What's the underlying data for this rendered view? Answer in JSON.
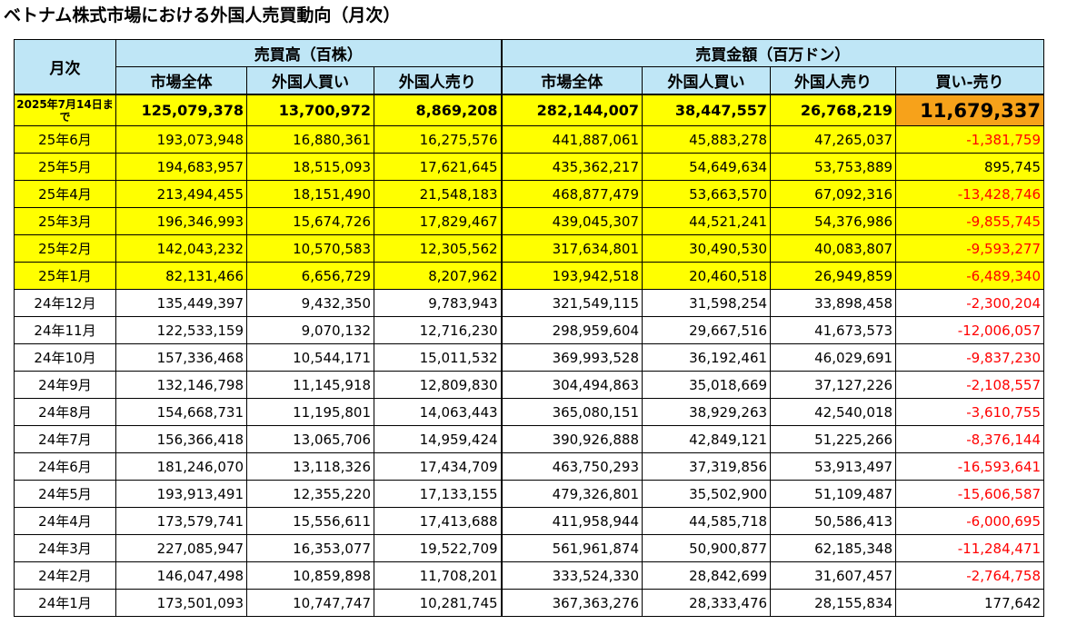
{
  "title": "ベトナム株式市場における外国人売買動向（月次）",
  "header": {
    "month_col": "月次",
    "group_volume": "売買高（百株）",
    "group_value": "売買金額（百万ドン）",
    "cols": [
      "市場全体",
      "外国人買い",
      "外国人売り",
      "市場全体",
      "外国人買い",
      "外国人売り",
      "買い-売り"
    ]
  },
  "latest": {
    "label": "2025年7月14日まで",
    "values": [
      "125,079,378",
      "13,700,972",
      "8,869,208",
      "282,144,007",
      "38,447,557",
      "26,768,219",
      "11,679,337"
    ]
  },
  "rows": [
    {
      "label": "25年6月",
      "values": [
        "193,073,948",
        "16,880,361",
        "16,275,576",
        "441,887,061",
        "45,883,278",
        "47,265,037",
        "-1,381,759"
      ]
    },
    {
      "label": "25年5月",
      "values": [
        "194,683,957",
        "18,515,093",
        "17,621,645",
        "435,362,217",
        "54,649,634",
        "53,753,889",
        "895,745"
      ]
    },
    {
      "label": "25年4月",
      "values": [
        "213,494,455",
        "18,151,490",
        "21,548,183",
        "468,877,479",
        "53,663,570",
        "67,092,316",
        "-13,428,746"
      ]
    },
    {
      "label": "25年3月",
      "values": [
        "196,346,993",
        "15,674,726",
        "17,829,467",
        "439,045,307",
        "44,521,241",
        "54,376,986",
        "-9,855,745"
      ]
    },
    {
      "label": "25年2月",
      "values": [
        "142,043,232",
        "10,570,583",
        "12,305,562",
        "317,634,801",
        "30,490,530",
        "40,083,807",
        "-9,593,277"
      ]
    },
    {
      "label": "25年1月",
      "values": [
        "82,131,466",
        "6,656,729",
        "8,207,962",
        "193,942,518",
        "20,460,518",
        "26,949,859",
        "-6,489,340"
      ]
    },
    {
      "label": "24年12月",
      "values": [
        "135,449,397",
        "9,432,350",
        "9,783,943",
        "321,549,115",
        "31,598,254",
        "33,898,458",
        "-2,300,204"
      ]
    },
    {
      "label": "24年11月",
      "values": [
        "122,533,159",
        "9,070,132",
        "12,716,230",
        "298,959,604",
        "29,667,516",
        "41,673,573",
        "-12,006,057"
      ]
    },
    {
      "label": "24年10月",
      "values": [
        "157,336,468",
        "10,544,171",
        "15,011,532",
        "369,993,528",
        "36,192,461",
        "46,029,691",
        "-9,837,230"
      ]
    },
    {
      "label": "24年9月",
      "values": [
        "132,146,798",
        "11,145,918",
        "12,809,830",
        "304,494,863",
        "35,018,669",
        "37,127,226",
        "-2,108,557"
      ]
    },
    {
      "label": "24年8月",
      "values": [
        "154,668,731",
        "11,195,801",
        "14,063,443",
        "365,080,151",
        "38,929,263",
        "42,540,018",
        "-3,610,755"
      ]
    },
    {
      "label": "24年7月",
      "values": [
        "156,366,418",
        "13,065,706",
        "14,959,424",
        "390,926,888",
        "42,849,121",
        "51,225,266",
        "-8,376,144"
      ]
    },
    {
      "label": "24年6月",
      "values": [
        "181,246,070",
        "13,118,326",
        "17,434,709",
        "463,750,293",
        "37,319,856",
        "53,913,497",
        "-16,593,641"
      ]
    },
    {
      "label": "24年5月",
      "values": [
        "193,913,491",
        "12,355,220",
        "17,133,155",
        "479,326,801",
        "35,502,900",
        "51,109,487",
        "-15,606,587"
      ]
    },
    {
      "label": "24年4月",
      "values": [
        "173,579,741",
        "15,556,611",
        "17,413,688",
        "411,958,944",
        "44,585,718",
        "50,586,413",
        "-6,000,695"
      ]
    },
    {
      "label": "24年3月",
      "values": [
        "227,085,947",
        "16,353,077",
        "19,522,709",
        "561,961,874",
        "50,900,877",
        "62,185,348",
        "-11,284,471"
      ]
    },
    {
      "label": "24年2月",
      "values": [
        "146,047,498",
        "10,859,898",
        "11,708,201",
        "333,524,330",
        "28,842,699",
        "31,607,457",
        "-2,764,758"
      ]
    },
    {
      "label": "24年1月",
      "values": [
        "173,501,093",
        "10,747,747",
        "10,281,745",
        "367,363,276",
        "28,333,476",
        "28,155,834",
        "177,642"
      ]
    }
  ],
  "colors": {
    "header_bg": "#bfe6f6",
    "highlight_row_bg": "#ffff00",
    "latest_net_bg": "#f7a21a",
    "negative_text": "#ff0000"
  }
}
